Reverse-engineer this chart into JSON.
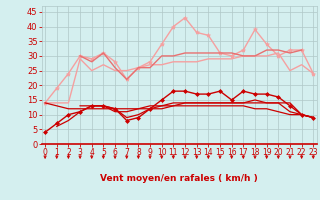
{
  "x": [
    0,
    1,
    2,
    3,
    4,
    5,
    6,
    7,
    8,
    9,
    10,
    11,
    12,
    13,
    14,
    15,
    16,
    17,
    18,
    19,
    20,
    21,
    22,
    23
  ],
  "series": [
    {
      "name": "light_pink_upper",
      "color": "#f5a0a0",
      "linewidth": 1.0,
      "marker": "*",
      "markersize": 3,
      "y": [
        14,
        19,
        24,
        30,
        29,
        31,
        28,
        22,
        26,
        28,
        34,
        40,
        43,
        38,
        37,
        31,
        30,
        32,
        39,
        34,
        30,
        32,
        32,
        24
      ]
    },
    {
      "name": "light_pink_lower",
      "color": "#f5a0a0",
      "linewidth": 1.0,
      "marker": null,
      "markersize": 2,
      "y": [
        14,
        14,
        14,
        29,
        25,
        27,
        25,
        25,
        26,
        27,
        27,
        28,
        28,
        28,
        29,
        29,
        29,
        30,
        30,
        30,
        31,
        25,
        27,
        24
      ]
    },
    {
      "name": "mid_pink",
      "color": "#e87070",
      "linewidth": 1.0,
      "marker": null,
      "markersize": 2,
      "y": [
        null,
        null,
        null,
        30,
        28,
        31,
        26,
        22,
        26,
        26,
        30,
        30,
        31,
        31,
        31,
        31,
        31,
        30,
        30,
        32,
        32,
        31,
        32,
        null
      ]
    },
    {
      "name": "dark_red_marker",
      "color": "#cc0000",
      "linewidth": 1.0,
      "marker": "D",
      "markersize": 2.0,
      "y": [
        4,
        7,
        10,
        11,
        13,
        13,
        12,
        8,
        9,
        12,
        15,
        18,
        18,
        17,
        17,
        18,
        15,
        18,
        17,
        17,
        16,
        13,
        10,
        9
      ]
    },
    {
      "name": "dark_red_line2",
      "color": "#cc0000",
      "linewidth": 0.9,
      "marker": null,
      "markersize": 2,
      "y": [
        null,
        null,
        null,
        13,
        13,
        13,
        11,
        11,
        12,
        13,
        13,
        14,
        14,
        14,
        14,
        14,
        14,
        14,
        15,
        14,
        14,
        14,
        10,
        9
      ]
    },
    {
      "name": "dark_red_line3",
      "color": "#cc0000",
      "linewidth": 0.9,
      "marker": null,
      "markersize": 2,
      "y": [
        14,
        13,
        12,
        12,
        12,
        12,
        12,
        12,
        12,
        12,
        12,
        13,
        13,
        13,
        13,
        13,
        13,
        13,
        12,
        12,
        11,
        10,
        10,
        9
      ]
    },
    {
      "name": "dark_red_line4",
      "color": "#cc0000",
      "linewidth": 0.9,
      "marker": null,
      "markersize": 2,
      "y": [
        null,
        6,
        8,
        11,
        13,
        13,
        12,
        9,
        10,
        12,
        13,
        13,
        14,
        14,
        14,
        14,
        14,
        14,
        14,
        14,
        14,
        11,
        10,
        9
      ]
    }
  ],
  "xlim": [
    -0.3,
    23.3
  ],
  "ylim": [
    0,
    47
  ],
  "yticks": [
    0,
    5,
    10,
    15,
    20,
    25,
    30,
    35,
    40,
    45
  ],
  "xticks": [
    0,
    1,
    2,
    3,
    4,
    5,
    6,
    7,
    8,
    9,
    10,
    11,
    12,
    13,
    14,
    15,
    16,
    17,
    18,
    19,
    20,
    21,
    22,
    23
  ],
  "xlabel": "Vent moyen/en rafales ( km/h )",
  "background_color": "#d4efef",
  "grid_color": "#b0c8c8",
  "tick_color": "#cc0000",
  "label_color": "#cc0000",
  "xlabel_fontsize": 6.5,
  "ytick_fontsize": 6,
  "xtick_fontsize": 5.5
}
